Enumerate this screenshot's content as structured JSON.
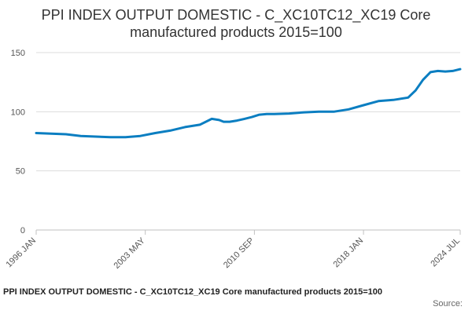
{
  "chart_data": {
    "type": "line",
    "title": "PPI INDEX OUTPUT DOMESTIC - C_XC10TC12_XC19 Core manufactured products 2015=100",
    "xlabel": "",
    "ylabel": "",
    "ylim": [
      0,
      150
    ],
    "yticks": [
      0,
      50,
      100,
      150
    ],
    "xlim": [
      1996.0,
      2024.5
    ],
    "xticks": [
      {
        "value": 1996.0,
        "label": "1996 JAN"
      },
      {
        "value": 2003.333,
        "label": "2003 MAY"
      },
      {
        "value": 2010.667,
        "label": "2010 SEP"
      },
      {
        "value": 2018.0,
        "label": "2018 JAN"
      },
      {
        "value": 2024.5,
        "label": "2024 JUL"
      }
    ],
    "grid": "horizontal",
    "legend": "none",
    "series": [
      {
        "color": "#0b7ec1",
        "x": [
          1996.0,
          1997.0,
          1998.0,
          1999.0,
          2000.0,
          2001.0,
          2002.0,
          2003.0,
          2004.0,
          2005.0,
          2006.0,
          2007.0,
          2007.8,
          2008.3,
          2008.6,
          2009.0,
          2009.5,
          2010.0,
          2010.5,
          2011.0,
          2011.5,
          2012.0,
          2013.0,
          2014.0,
          2015.0,
          2016.0,
          2017.0,
          2018.0,
          2019.0,
          2020.0,
          2021.0,
          2021.5,
          2022.0,
          2022.5,
          2023.0,
          2023.5,
          2024.0,
          2024.5
        ],
        "values": [
          82,
          81.5,
          81,
          79.5,
          79,
          78.5,
          78.5,
          79.5,
          82,
          84,
          87,
          89,
          94,
          93,
          91.5,
          91.5,
          92.5,
          94,
          95.5,
          97.5,
          98,
          98,
          98.5,
          99.5,
          100,
          100,
          102,
          105.5,
          109,
          110,
          112,
          118,
          127,
          133.5,
          134.5,
          134,
          134.5,
          136
        ]
      }
    ]
  },
  "footer": {
    "title": "PPI INDEX OUTPUT DOMESTIC - C_XC10TC12_XC19 Core manufactured products 2015=100",
    "source": "Source:"
  }
}
